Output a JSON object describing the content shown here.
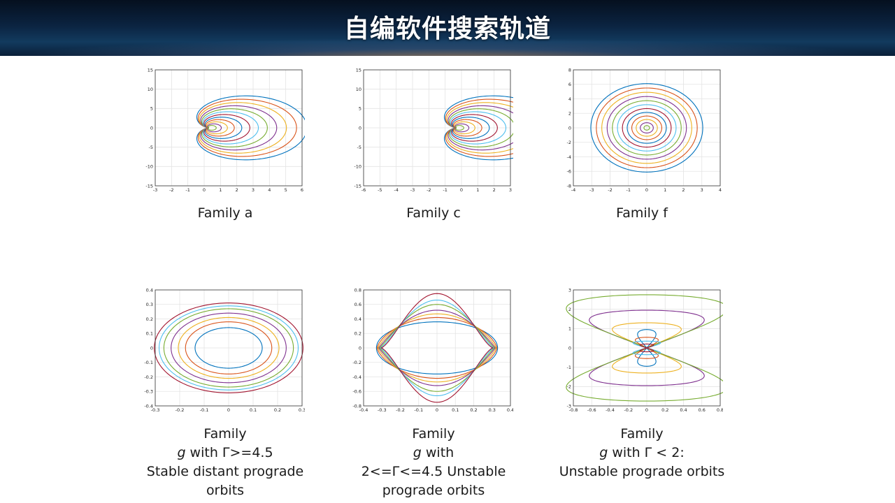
{
  "header": {
    "title": "自编软件搜索轨道"
  },
  "chart_data": [
    {
      "type": "line",
      "caption": [
        "Family a"
      ],
      "xlim": [
        -3,
        6
      ],
      "ylim": [
        -15,
        15
      ],
      "xticks": [
        "-3",
        "-2",
        "-1",
        "0",
        "1",
        "2",
        "3",
        "4",
        "5",
        "6"
      ],
      "yticks": [
        "-15",
        "-10",
        "-5",
        "0",
        "5",
        "10",
        "15"
      ],
      "grid": true,
      "series_colors": [
        "#0072bd",
        "#d95319",
        "#edb120",
        "#7e2f8e",
        "#77ac30",
        "#4dbeee",
        "#a2142f"
      ]
    },
    {
      "type": "line",
      "caption": [
        "Family c"
      ],
      "xlim": [
        -6,
        3
      ],
      "ylim": [
        -15,
        15
      ],
      "xticks": [
        "-6",
        "-5",
        "-4",
        "-3",
        "-2",
        "-1",
        "0",
        "1",
        "2",
        "3"
      ],
      "yticks": [
        "-15",
        "-10",
        "-5",
        "0",
        "5",
        "10",
        "15"
      ],
      "grid": true,
      "series_colors": [
        "#0072bd",
        "#d95319",
        "#edb120",
        "#7e2f8e",
        "#77ac30",
        "#4dbeee",
        "#a2142f"
      ]
    },
    {
      "type": "line",
      "caption": [
        "Family f"
      ],
      "xlim": [
        -4,
        4
      ],
      "ylim": [
        -8,
        8
      ],
      "xticks": [
        "-4",
        "-3",
        "-2",
        "-1",
        "0",
        "1",
        "2",
        "3",
        "4"
      ],
      "yticks": [
        "-8",
        "-6",
        "-4",
        "-2",
        "0",
        "2",
        "4",
        "6",
        "8"
      ],
      "grid": true,
      "series_colors": [
        "#0072bd",
        "#d95319",
        "#edb120",
        "#7e2f8e",
        "#77ac30",
        "#4dbeee",
        "#a2142f"
      ]
    },
    {
      "type": "line",
      "caption_parts": {
        "family": "Family ",
        "g": "g",
        "rest": " with Γ>=4.5"
      },
      "caption": [
        "Stable distant prograde",
        "orbits"
      ],
      "xlim": [
        -0.3,
        0.3
      ],
      "ylim": [
        -0.4,
        0.4
      ],
      "xticks": [
        "-0.3",
        "-0.2",
        "-0.1",
        "0",
        "0.1",
        "0.2",
        "0.3"
      ],
      "yticks": [
        "-0.4",
        "-0.3",
        "-0.2",
        "-0.1",
        "0",
        "0.1",
        "0.2",
        "0.3",
        "0.4"
      ],
      "grid": true,
      "series_colors": [
        "#0072bd",
        "#d95319",
        "#edb120",
        "#7e2f8e",
        "#77ac30",
        "#4dbeee",
        "#a2142f"
      ]
    },
    {
      "type": "line",
      "caption_parts": {
        "family": "Family ",
        "g": "g",
        "rest": " with"
      },
      "caption": [
        "2<=Γ<=4.5 Unstable",
        "prograde orbits"
      ],
      "xlim": [
        -0.4,
        0.4
      ],
      "ylim": [
        -0.8,
        0.8
      ],
      "xticks": [
        "-0.4",
        "-0.3",
        "-0.2",
        "-0.1",
        "0",
        "0.1",
        "0.2",
        "0.3",
        "0.4"
      ],
      "yticks": [
        "-0.8",
        "-0.6",
        "-0.4",
        "-0.2",
        "0",
        "0.2",
        "0.4",
        "0.6",
        "0.8"
      ],
      "grid": true,
      "series_colors": [
        "#0072bd",
        "#d95319",
        "#edb120",
        "#7e2f8e",
        "#77ac30",
        "#4dbeee",
        "#a2142f"
      ]
    },
    {
      "type": "line",
      "caption_parts": {
        "family": "Family ",
        "g": "g",
        "rest": " with Γ < 2:"
      },
      "caption": [
        "Unstable prograde orbits"
      ],
      "xlim": [
        -0.8,
        0.8
      ],
      "ylim": [
        -3,
        3
      ],
      "xticks": [
        "-0.8",
        "-0.6",
        "-0.4",
        "-0.2",
        "0",
        "0.2",
        "0.4",
        "0.6",
        "0.8"
      ],
      "yticks": [
        "-3",
        "-2",
        "-1",
        "0",
        "1",
        "2",
        "3"
      ],
      "grid": true,
      "series_colors": [
        "#0072bd",
        "#d95319",
        "#edb120",
        "#7e2f8e",
        "#77ac30",
        "#4dbeee",
        "#a2142f"
      ]
    }
  ]
}
